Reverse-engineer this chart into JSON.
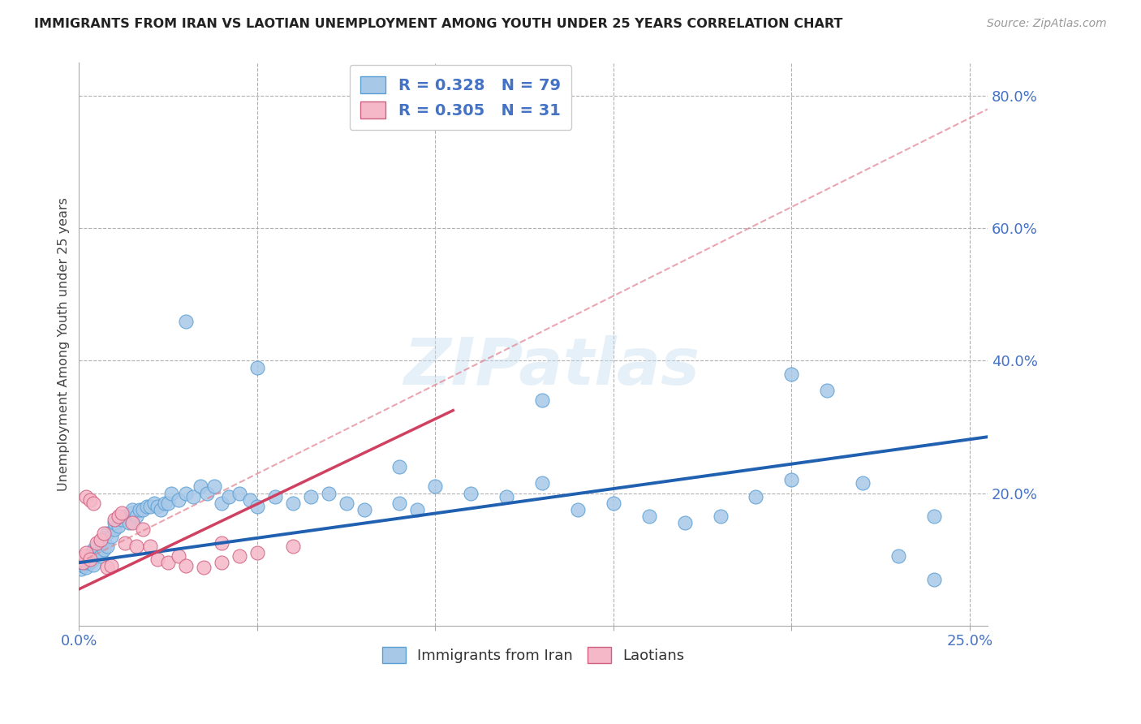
{
  "title": "IMMIGRANTS FROM IRAN VS LAOTIAN UNEMPLOYMENT AMONG YOUTH UNDER 25 YEARS CORRELATION CHART",
  "source": "Source: ZipAtlas.com",
  "ylabel": "Unemployment Among Youth under 25 years",
  "xlim": [
    0.0,
    0.255
  ],
  "ylim": [
    0.0,
    0.85
  ],
  "blue_color": "#a8c8e8",
  "blue_edge": "#5a9fd4",
  "blue_trend_color": "#2060b0",
  "pink_color": "#f5b8c8",
  "pink_edge": "#d06080",
  "pink_trend_color": "#d04060",
  "dashed_color": "#e08090",
  "blue_R": "0.328",
  "blue_N": "79",
  "pink_R": "0.305",
  "pink_N": "31",
  "blue_trend_x": [
    0.0,
    0.255
  ],
  "blue_trend_y": [
    0.095,
    0.285
  ],
  "pink_trend_x": [
    0.0,
    0.105
  ],
  "pink_trend_y": [
    0.055,
    0.325
  ],
  "dashed_trend_x": [
    0.0,
    0.255
  ],
  "dashed_trend_y": [
    0.095,
    0.78
  ],
  "legend_label_blue": "Immigrants from Iran",
  "legend_label_pink": "Laotians",
  "watermark": "ZIPatlas",
  "blue_scatter_x": [
    0.0005,
    0.001,
    0.0015,
    0.002,
    0.002,
    0.0025,
    0.003,
    0.003,
    0.0035,
    0.004,
    0.004,
    0.005,
    0.005,
    0.006,
    0.006,
    0.007,
    0.007,
    0.008,
    0.008,
    0.009,
    0.01,
    0.01,
    0.011,
    0.012,
    0.013,
    0.014,
    0.015,
    0.015,
    0.016,
    0.017,
    0.018,
    0.019,
    0.02,
    0.021,
    0.022,
    0.023,
    0.024,
    0.025,
    0.026,
    0.028,
    0.03,
    0.032,
    0.034,
    0.036,
    0.038,
    0.04,
    0.042,
    0.045,
    0.048,
    0.05,
    0.055,
    0.06,
    0.065,
    0.07,
    0.075,
    0.08,
    0.09,
    0.095,
    0.1,
    0.11,
    0.12,
    0.13,
    0.14,
    0.15,
    0.16,
    0.17,
    0.18,
    0.19,
    0.2,
    0.21,
    0.22,
    0.23,
    0.24,
    0.03,
    0.05,
    0.09,
    0.13,
    0.2,
    0.24
  ],
  "blue_scatter_y": [
    0.085,
    0.09,
    0.092,
    0.088,
    0.095,
    0.1,
    0.105,
    0.095,
    0.098,
    0.092,
    0.115,
    0.11,
    0.12,
    0.105,
    0.125,
    0.115,
    0.13,
    0.12,
    0.14,
    0.135,
    0.145,
    0.155,
    0.15,
    0.16,
    0.165,
    0.155,
    0.17,
    0.175,
    0.165,
    0.175,
    0.175,
    0.18,
    0.18,
    0.185,
    0.18,
    0.175,
    0.185,
    0.185,
    0.2,
    0.19,
    0.2,
    0.195,
    0.21,
    0.2,
    0.21,
    0.185,
    0.195,
    0.2,
    0.19,
    0.18,
    0.195,
    0.185,
    0.195,
    0.2,
    0.185,
    0.175,
    0.185,
    0.175,
    0.21,
    0.2,
    0.195,
    0.215,
    0.175,
    0.185,
    0.165,
    0.155,
    0.165,
    0.195,
    0.38,
    0.355,
    0.215,
    0.105,
    0.165,
    0.46,
    0.39,
    0.24,
    0.34,
    0.22,
    0.07
  ],
  "pink_scatter_x": [
    0.0005,
    0.001,
    0.0015,
    0.002,
    0.002,
    0.003,
    0.003,
    0.004,
    0.005,
    0.006,
    0.007,
    0.008,
    0.009,
    0.01,
    0.011,
    0.012,
    0.013,
    0.015,
    0.016,
    0.018,
    0.02,
    0.022,
    0.025,
    0.028,
    0.03,
    0.035,
    0.04,
    0.04,
    0.045,
    0.05,
    0.06
  ],
  "pink_scatter_y": [
    0.1,
    0.095,
    0.105,
    0.11,
    0.195,
    0.19,
    0.1,
    0.185,
    0.125,
    0.13,
    0.14,
    0.088,
    0.09,
    0.16,
    0.165,
    0.17,
    0.125,
    0.155,
    0.12,
    0.145,
    0.12,
    0.1,
    0.095,
    0.105,
    0.09,
    0.088,
    0.095,
    0.125,
    0.105,
    0.11,
    0.12
  ]
}
